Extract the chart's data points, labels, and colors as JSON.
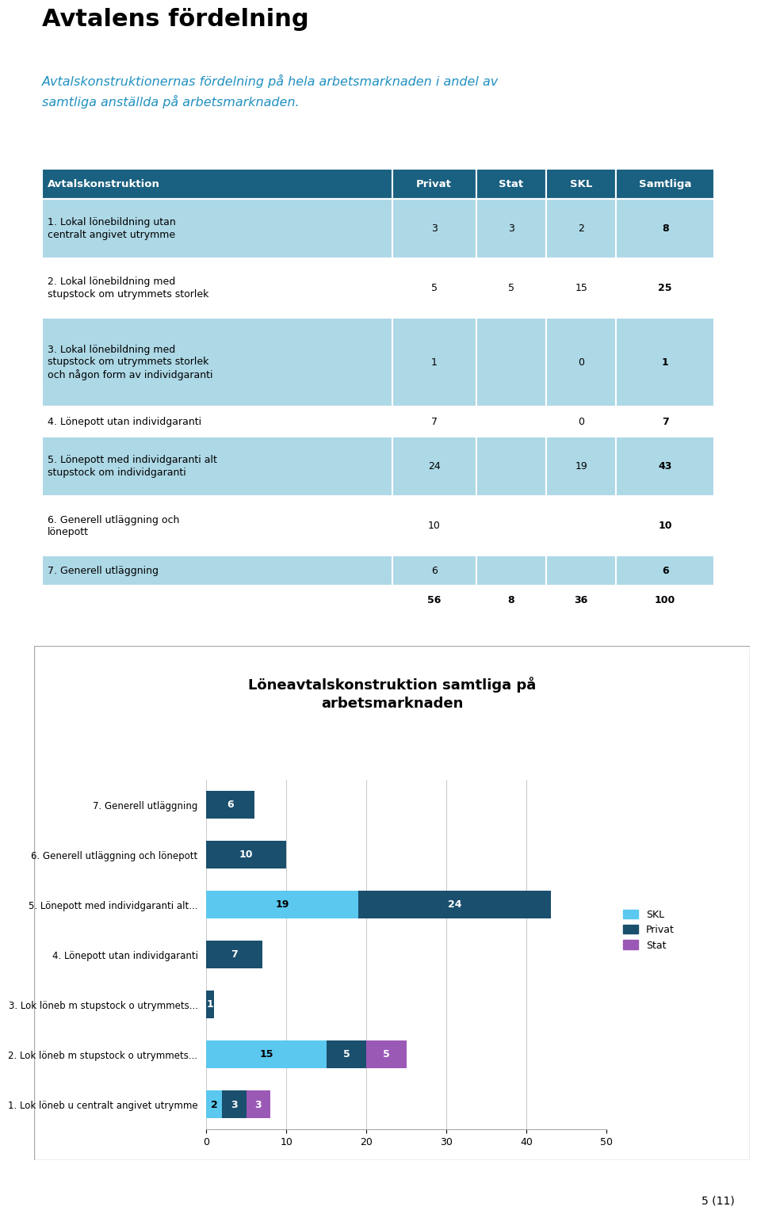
{
  "title": "Avtalens fördelning",
  "subtitle": "Avtalskonstruktionernas fördelning på hela arbetsmarknaden i andel av\nsamtliga anställda på arbetsmarknaden.",
  "title_color": "#000000",
  "subtitle_color": "#2090c0",
  "table_header_bg": "#1a6080",
  "table_header_text": "#ffffff",
  "table_row_bg_light": "#add8e6",
  "table_row_bg_white": "#ffffff",
  "table_columns": [
    "Avtalskonstruktion",
    "Privat",
    "Stat",
    "SKL",
    "Samtliga"
  ],
  "table_rows": [
    [
      "1. Lokal lönebildning utan\ncentralt angivet utrymme",
      "3",
      "3",
      "2",
      "8"
    ],
    [
      "2. Lokal lönebildning med\nstupstock om utrymmets storlek",
      "5",
      "5",
      "15",
      "25"
    ],
    [
      "3. Lokal lönebildning med\nstupstock om utrymmets storlek\noch någon form av individgaranti",
      "1",
      "",
      "0",
      "1"
    ],
    [
      "4. Lönepott utan individgaranti",
      "7",
      "",
      "0",
      "7"
    ],
    [
      "5. Lönepott med individgaranti alt\nstupstock om individgaranti",
      "24",
      "",
      "19",
      "43"
    ],
    [
      "6. Generell utläggning och\nlönepott",
      "10",
      "",
      "",
      "10"
    ],
    [
      "7. Generell utläggning",
      "6",
      "",
      "",
      "6"
    ],
    [
      "",
      "56",
      "8",
      "36",
      "100"
    ]
  ],
  "chart_title": "Löneavtalskonstruktion samtliga på\narbetsmarknaden",
  "chart_categories": [
    "1. Lok löneb u centralt angivet utrymme",
    "2. Lok löneb m stupstock o utrymmets...",
    "3. Lok löneb m stupstock o utrymmets...",
    "4. Lönepott utan individgaranti",
    "5. Lönepott med individgaranti alt...",
    "6. Generell utläggning och lönepott",
    "7. Generell utläggning"
  ],
  "skl_values": [
    2,
    15,
    0,
    0,
    19,
    0,
    0
  ],
  "privat_values": [
    3,
    5,
    1,
    7,
    24,
    10,
    6
  ],
  "stat_values": [
    3,
    5,
    0,
    0,
    0,
    0,
    0
  ],
  "color_skl": "#5bc8f0",
  "color_privat": "#1a4f6e",
  "color_stat": "#9b59b6",
  "chart_xlim": [
    0,
    50
  ],
  "chart_xticks": [
    0,
    10,
    20,
    30,
    40,
    50
  ],
  "page_note": "5 (11)"
}
